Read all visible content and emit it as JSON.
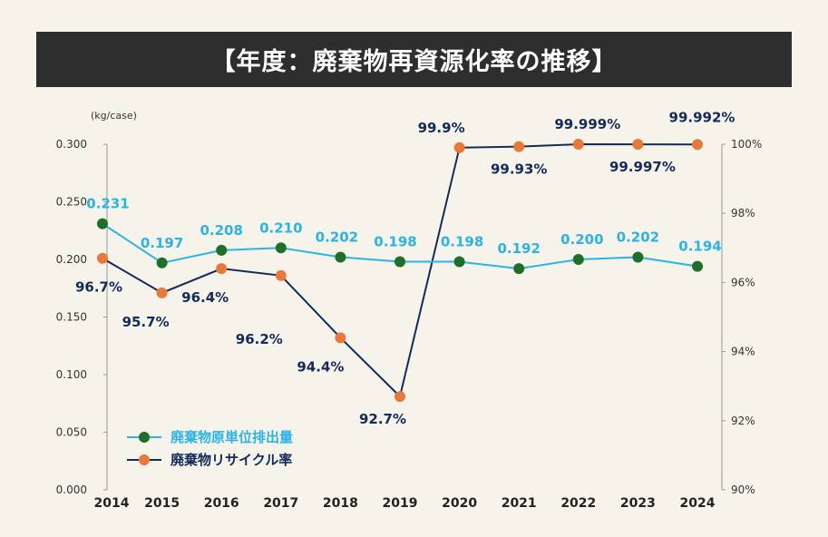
{
  "title": "【年度：廃棄物再資源化率の推移】",
  "chart_data": {
    "type": "line",
    "categories": [
      "2014",
      "2015",
      "2016",
      "2017",
      "2018",
      "2019",
      "2020",
      "2021",
      "2022",
      "2023",
      "2024"
    ],
    "y_left_unit": "(kg/case)",
    "y_left_ticks": [
      "0.000",
      "0.050",
      "0.100",
      "0.150",
      "0.200",
      "0.250",
      "0.300"
    ],
    "y_left_lim": [
      0,
      0.3
    ],
    "y_right_ticks": [
      "90%",
      "92%",
      "94%",
      "96%",
      "98%",
      "100%"
    ],
    "y_right_lim": [
      90,
      100
    ],
    "series": [
      {
        "name": "廃棄物原単位排出量",
        "axis": "left",
        "line_color": "#2bb3e6",
        "marker_color": "#1f6e2a",
        "values": [
          0.231,
          0.197,
          0.208,
          0.21,
          0.202,
          0.198,
          0.198,
          0.192,
          0.2,
          0.202,
          0.194
        ],
        "labels": [
          "0.231",
          "0.197",
          "0.208",
          "0.210",
          "0.202",
          "0.198",
          "0.198",
          "0.192",
          "0.200",
          "0.202",
          "0.194"
        ]
      },
      {
        "name": "廃棄物リサイクル率",
        "axis": "right",
        "line_color": "#142a5c",
        "marker_color": "#e8793a",
        "values": [
          96.7,
          95.7,
          96.4,
          96.2,
          94.4,
          92.7,
          99.9,
          99.93,
          99.999,
          99.997,
          99.992
        ],
        "labels": [
          "96.7%",
          "95.7%",
          "96.4%",
          "96.2%",
          "94.4%",
          "92.7%",
          "99.9%",
          "99.93%",
          "99.999%",
          "99.997%",
          "99.992%"
        ]
      }
    ],
    "legend_position": "bottom-left",
    "grid": false
  }
}
